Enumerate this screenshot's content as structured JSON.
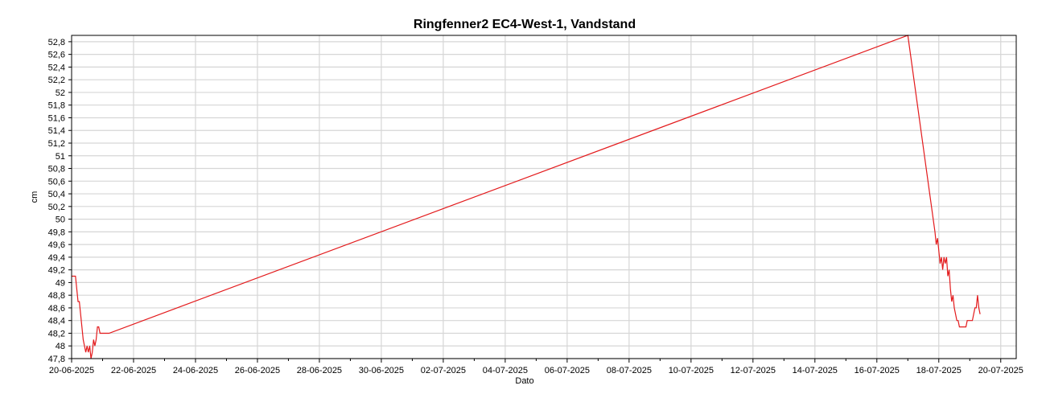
{
  "chart_data": {
    "type": "line",
    "title": "Ringfenner2 EC4-West-1, Vandstand",
    "xlabel": "Dato",
    "ylabel": "cm",
    "x_tick_labels": [
      "20-06-2025",
      "22-06-2025",
      "24-06-2025",
      "26-06-2025",
      "28-06-2025",
      "30-06-2025",
      "02-07-2025",
      "04-07-2025",
      "06-07-2025",
      "08-07-2025",
      "10-07-2025",
      "12-07-2025",
      "14-07-2025",
      "16-07-2025",
      "18-07-2025",
      "20-07-2025"
    ],
    "y_tick_labels": [
      "47,8",
      "48",
      "48,2",
      "48,4",
      "48,6",
      "48,8",
      "49",
      "49,2",
      "49,4",
      "49,6",
      "49,8",
      "50",
      "50,2",
      "50,4",
      "50,6",
      "50,8",
      "51",
      "51,2",
      "51,4",
      "51,6",
      "51,8",
      "52",
      "52,2",
      "52,4",
      "52,6",
      "52,8"
    ],
    "xlim": [
      "2025-06-20T00:00",
      "2025-07-20T12:00"
    ],
    "ylim": [
      47.8,
      52.9
    ],
    "grid": true,
    "line_color": "#e31a1c",
    "series": [
      {
        "x": [
          "2025-06-20T00:00",
          "2025-06-20T03:00",
          "2025-06-20T04:00",
          "2025-06-20T05:00",
          "2025-06-20T06:00",
          "2025-06-20T07:00",
          "2025-06-20T08:00",
          "2025-06-20T09:00",
          "2025-06-20T10:00",
          "2025-06-20T11:00",
          "2025-06-20T12:00",
          "2025-06-20T13:00",
          "2025-06-20T14:00",
          "2025-06-20T15:00",
          "2025-06-20T16:00",
          "2025-06-20T17:00",
          "2025-06-20T18:00",
          "2025-06-20T19:00",
          "2025-06-20T20:00",
          "2025-06-20T21:00",
          "2025-06-20T22:00",
          "2025-06-20T23:00",
          "2025-06-21T00:00",
          "2025-06-21T01:00",
          "2025-06-21T02:00",
          "2025-06-21T03:00",
          "2025-06-21T04:00",
          "2025-06-21T05:00",
          "2025-07-17T00:00",
          "2025-07-17T21:00",
          "2025-07-17T22:00",
          "2025-07-17T23:00",
          "2025-07-18T00:00",
          "2025-07-18T01:00",
          "2025-07-18T02:00",
          "2025-07-18T03:00",
          "2025-07-18T04:00",
          "2025-07-18T05:00",
          "2025-07-18T06:00",
          "2025-07-18T07:00",
          "2025-07-18T08:00",
          "2025-07-18T09:00",
          "2025-07-18T10:00",
          "2025-07-18T11:00",
          "2025-07-18T12:00",
          "2025-07-18T13:00",
          "2025-07-18T14:00",
          "2025-07-18T15:00",
          "2025-07-18T16:00",
          "2025-07-18T17:00",
          "2025-07-18T18:00",
          "2025-07-18T19:00",
          "2025-07-18T20:00",
          "2025-07-18T21:00",
          "2025-07-18T22:00",
          "2025-07-18T23:00",
          "2025-07-19T00:00",
          "2025-07-19T01:00",
          "2025-07-19T02:00",
          "2025-07-19T03:00",
          "2025-07-19T04:00",
          "2025-07-19T05:00",
          "2025-07-19T06:00",
          "2025-07-19T07:00",
          "2025-07-19T08:00"
        ],
        "y": [
          49.1,
          49.1,
          48.9,
          48.7,
          48.7,
          48.5,
          48.3,
          48.1,
          48.0,
          47.9,
          48.0,
          47.9,
          48.0,
          47.8,
          47.9,
          48.1,
          48.0,
          48.1,
          48.3,
          48.3,
          48.2,
          48.2,
          48.2,
          48.2,
          48.2,
          48.2,
          48.2,
          48.2,
          52.9,
          49.8,
          49.6,
          49.7,
          49.5,
          49.3,
          49.4,
          49.2,
          49.4,
          49.3,
          49.4,
          49.1,
          49.2,
          48.9,
          48.7,
          48.8,
          48.6,
          48.5,
          48.4,
          48.4,
          48.3,
          48.3,
          48.3,
          48.3,
          48.3,
          48.3,
          48.4,
          48.4,
          48.4,
          48.4,
          48.4,
          48.5,
          48.6,
          48.6,
          48.8,
          48.6,
          48.5
        ]
      }
    ]
  }
}
